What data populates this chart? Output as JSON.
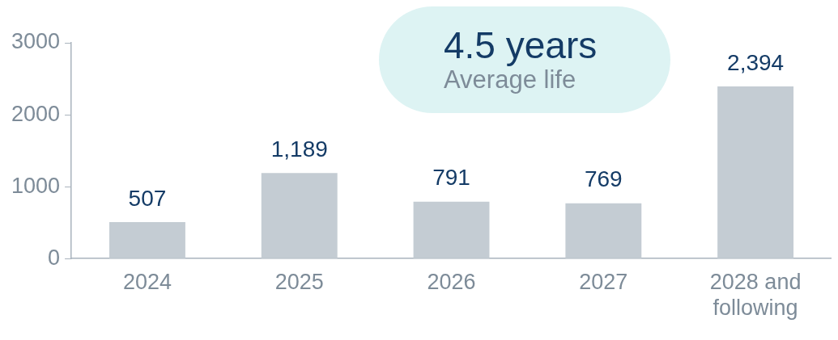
{
  "chart_data": {
    "type": "bar",
    "categories": [
      "2024",
      "2025",
      "2026",
      "2027",
      "2028 and following"
    ],
    "values": [
      507,
      1189,
      791,
      769,
      2394
    ],
    "value_labels": [
      "507",
      "1,189",
      "791",
      "769",
      "2,394"
    ],
    "color": "#c4ccd3",
    "ylim": [
      0,
      3000
    ],
    "yticks": [
      0,
      1000,
      2000,
      3000
    ],
    "annotations": [
      "4.5 years",
      "Average life"
    ]
  }
}
